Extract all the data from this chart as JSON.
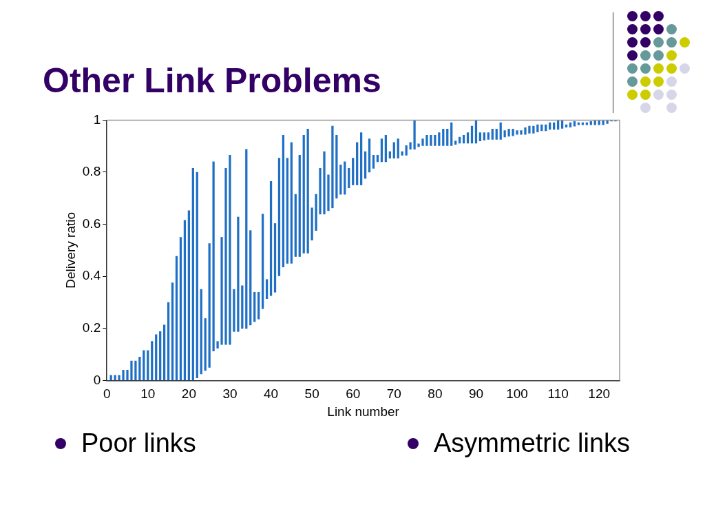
{
  "chart_data": {
    "type": "bar",
    "title": "Other Link Problems",
    "xlabel": "Link number",
    "ylabel": "Delivery ratio",
    "x": [
      1,
      2,
      3,
      4,
      5,
      6,
      7,
      8,
      9,
      10,
      11,
      12,
      13,
      14,
      15,
      16,
      17,
      18,
      19,
      20,
      21,
      22,
      23,
      24,
      25,
      26,
      27,
      28,
      29,
      30,
      31,
      32,
      33,
      34,
      35,
      36,
      37,
      38,
      39,
      40,
      41,
      42,
      43,
      44,
      45,
      46,
      47,
      48,
      49,
      50,
      51,
      52,
      53,
      54,
      55,
      56,
      57,
      58,
      59,
      60,
      61,
      62,
      63,
      64,
      65,
      66,
      67,
      68,
      69,
      70,
      71,
      72,
      73,
      74,
      75,
      76,
      77,
      78,
      79,
      80,
      81,
      82,
      83,
      84,
      85,
      86,
      87,
      88,
      89,
      90,
      91,
      92,
      93,
      94,
      95,
      96,
      97,
      98,
      99,
      100,
      101,
      102,
      103,
      104,
      105,
      106,
      107,
      108,
      109,
      110,
      111,
      112,
      113,
      114,
      115,
      116,
      117,
      118,
      119,
      120,
      121,
      122,
      123,
      124
    ],
    "base": [
      0,
      0,
      0,
      0,
      0,
      0,
      0,
      0,
      0,
      0,
      0,
      0,
      0,
      0,
      0,
      0,
      0,
      0,
      0,
      0,
      0,
      0.01,
      0.025,
      0.038,
      0.05,
      0.113,
      0.124,
      0.138,
      0.138,
      0.138,
      0.188,
      0.188,
      0.2,
      0.2,
      0.213,
      0.226,
      0.236,
      0.276,
      0.314,
      0.326,
      0.339,
      0.402,
      0.436,
      0.45,
      0.45,
      0.476,
      0.476,
      0.489,
      0.489,
      0.539,
      0.576,
      0.639,
      0.639,
      0.652,
      0.663,
      0.7,
      0.715,
      0.715,
      0.74,
      0.751,
      0.751,
      0.751,
      0.776,
      0.8,
      0.815,
      0.84,
      0.84,
      0.84,
      0.854,
      0.854,
      0.854,
      0.865,
      0.865,
      0.888,
      0.888,
      0.898,
      0.902,
      0.902,
      0.902,
      0.902,
      0.902,
      0.902,
      0.902,
      0.902,
      0.907,
      0.911,
      0.911,
      0.911,
      0.911,
      0.911,
      0.92,
      0.923,
      0.926,
      0.926,
      0.926,
      0.926,
      0.935,
      0.938,
      0.94,
      0.945,
      0.945,
      0.945,
      0.95,
      0.95,
      0.954,
      0.959,
      0.959,
      0.964,
      0.964,
      0.964,
      0.968,
      0.973,
      0.973,
      0.977,
      0.982,
      0.982,
      0.982,
      0.982,
      0.982,
      0.982,
      0.982,
      0.987,
      0.996,
      0.996
    ],
    "values": [
      0.02,
      0.02,
      0.02,
      0.04,
      0.04,
      0.075,
      0.075,
      0.09,
      0.115,
      0.115,
      0.15,
      0.176,
      0.188,
      0.213,
      0.3,
      0.375,
      0.477,
      0.55,
      0.615,
      0.652,
      0.815,
      0.79,
      0.325,
      0.2,
      0.476,
      0.727,
      0.026,
      0.412,
      0.677,
      0.727,
      0.162,
      0.44,
      0.164,
      0.688,
      0.363,
      0.113,
      0.103,
      0.363,
      0.074,
      0.439,
      0.264,
      0.452,
      0.506,
      0.404,
      0.464,
      0.239,
      0.389,
      0.453,
      0.477,
      0.124,
      0.139,
      0.176,
      0.24,
      0.138,
      0.314,
      0.242,
      0.113,
      0.125,
      0.075,
      0.103,
      0.163,
      0.201,
      0.103,
      0.128,
      0.05,
      0.025,
      0.088,
      0.102,
      0.025,
      0.06,
      0.074,
      0.014,
      0.037,
      0.026,
      0.112,
      0.011,
      0.026,
      0.04,
      0.04,
      0.04,
      0.05,
      0.064,
      0.064,
      0.088,
      0.013,
      0.024,
      0.031,
      0.041,
      0.066,
      0.089,
      0.032,
      0.029,
      0.026,
      0.04,
      0.04,
      0.064,
      0.025,
      0.028,
      0.026,
      0.015,
      0.015,
      0.026,
      0.027,
      0.027,
      0.028,
      0.023,
      0.023,
      0.026,
      0.026,
      0.036,
      0.032,
      0.009,
      0.017,
      0.018,
      0.008,
      0.008,
      0.008,
      0.013,
      0.018,
      0.018,
      0.018,
      0.013,
      0.004,
      0.004
    ],
    "color": "#1f6fc5",
    "xlim": [
      0,
      125
    ],
    "xticks": [
      0,
      10,
      20,
      30,
      40,
      50,
      60,
      70,
      80,
      90,
      100,
      110,
      120
    ],
    "ylim": [
      0,
      1
    ],
    "yticks": [
      0,
      0.2,
      0.4,
      0.6,
      0.8,
      1
    ],
    "annotations": [
      "Poor links",
      "Asymmetric links"
    ]
  }
}
